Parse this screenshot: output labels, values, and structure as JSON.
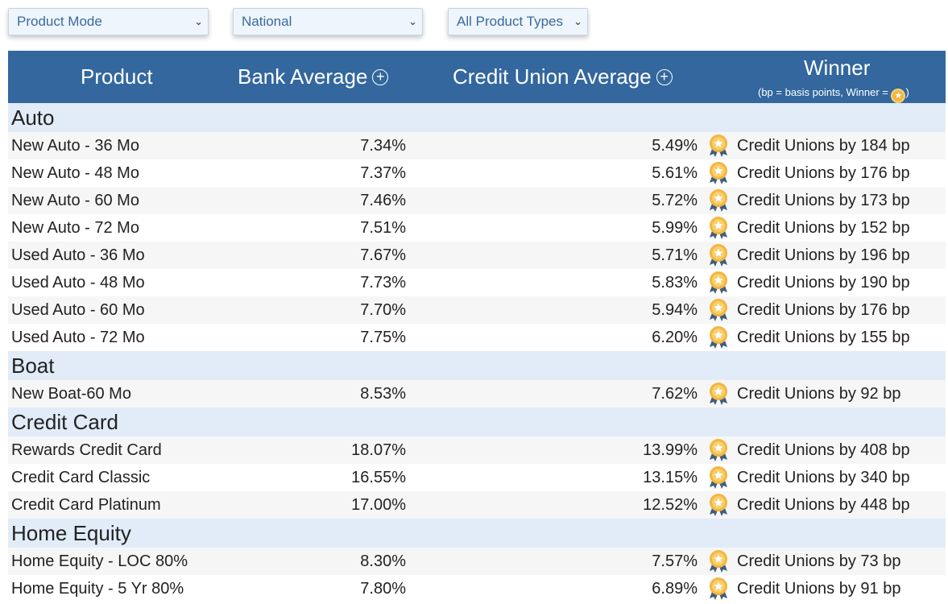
{
  "filters": {
    "product_mode": "Product Mode",
    "region": "National",
    "product_types": "All Product Types"
  },
  "header": {
    "product": "Product",
    "bank_average": "Bank Average",
    "credit_union_average": "Credit Union Average",
    "winner": "Winner",
    "note_prefix": "(bp = basis points, Winner = ",
    "note_suffix": ")",
    "plus_glyph": "+",
    "chevron_glyph": "⌄"
  },
  "colors": {
    "header_bg": "#33679e",
    "group_bg": "#e1ecf8",
    "row_alt_bg": "#f6f6f6",
    "medal_gold": "#f4b63f",
    "ribbon": "#3f5e7a"
  },
  "groups": [
    {
      "name": "Auto",
      "rows": [
        {
          "product": "New Auto - 36 Mo",
          "bank": "7.34%",
          "cu": "5.49%",
          "winner": "Credit Unions by 184 bp"
        },
        {
          "product": "New Auto - 48 Mo",
          "bank": "7.37%",
          "cu": "5.61%",
          "winner": "Credit Unions by 176 bp"
        },
        {
          "product": "New Auto - 60 Mo",
          "bank": "7.46%",
          "cu": "5.72%",
          "winner": "Credit Unions by 173 bp"
        },
        {
          "product": "New Auto - 72 Mo",
          "bank": "7.51%",
          "cu": "5.99%",
          "winner": "Credit Unions by 152 bp"
        },
        {
          "product": "Used Auto - 36 Mo",
          "bank": "7.67%",
          "cu": "5.71%",
          "winner": "Credit Unions by 196 bp"
        },
        {
          "product": "Used Auto - 48 Mo",
          "bank": "7.73%",
          "cu": "5.83%",
          "winner": "Credit Unions by 190 bp"
        },
        {
          "product": "Used Auto - 60 Mo",
          "bank": "7.70%",
          "cu": "5.94%",
          "winner": "Credit Unions by 176 bp"
        },
        {
          "product": "Used Auto - 72 Mo",
          "bank": "7.75%",
          "cu": "6.20%",
          "winner": "Credit Unions by 155 bp"
        }
      ]
    },
    {
      "name": "Boat",
      "rows": [
        {
          "product": "New Boat-60 Mo",
          "bank": "8.53%",
          "cu": "7.62%",
          "winner": "Credit Unions by 92 bp"
        }
      ]
    },
    {
      "name": "Credit Card",
      "rows": [
        {
          "product": "Rewards Credit Card",
          "bank": "18.07%",
          "cu": "13.99%",
          "winner": "Credit Unions by 408 bp"
        },
        {
          "product": "Credit Card Classic",
          "bank": "16.55%",
          "cu": "13.15%",
          "winner": "Credit Unions by 340 bp"
        },
        {
          "product": "Credit Card Platinum",
          "bank": "17.00%",
          "cu": "12.52%",
          "winner": "Credit Unions by 448 bp"
        }
      ]
    },
    {
      "name": "Home Equity",
      "rows": [
        {
          "product": "Home Equity - LOC 80%",
          "bank": "8.30%",
          "cu": "7.57%",
          "winner": "Credit Unions by 73 bp"
        },
        {
          "product": "Home Equity - 5 Yr 80%",
          "bank": "7.80%",
          "cu": "6.89%",
          "winner": "Credit Unions by 91 bp"
        }
      ]
    }
  ]
}
